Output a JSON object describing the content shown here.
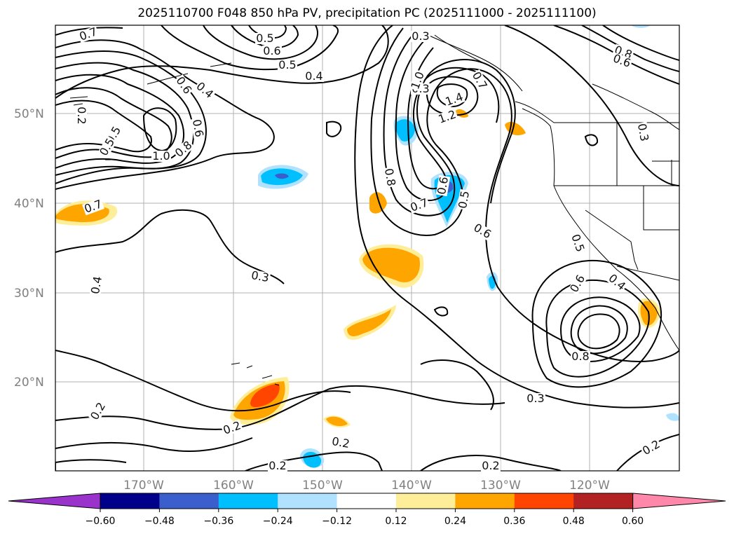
{
  "title": "2025110700 F048 850 hPa PV, precipitation PC (2025111000 - 2025111100)",
  "map": {
    "lat_labels": [
      "50°N",
      "40°N",
      "30°N",
      "20°N"
    ],
    "lon_labels": [
      "170°W",
      "160°W",
      "150°W",
      "140°W",
      "130°W",
      "120°W"
    ],
    "contour_labels": [
      "0.7",
      "0.5",
      "0.6",
      "0.5",
      "0.4",
      "0.3",
      "0.2",
      "0.3",
      "0.6",
      "0.5",
      "0.6",
      "0.4",
      "0.7",
      "1.0",
      "0.8",
      "0.5",
      "0.4",
      "0.3",
      "0.2",
      "0.2",
      "0.2",
      "0.2",
      "1.0",
      "1.4",
      "1.2",
      "0.7",
      "0.8",
      "0.7",
      "0.6",
      "0.5",
      "0.6",
      "0.8",
      "0.6",
      "0.3",
      "0.5",
      "0.6",
      "0.4",
      "0.8",
      "0.3",
      "0.2",
      "0.2"
    ]
  },
  "colorbar": {
    "ticks": [
      "−0.60",
      "−0.48",
      "−0.36",
      "−0.24",
      "−0.12",
      "0.12",
      "0.24",
      "0.36",
      "0.48",
      "0.60"
    ],
    "colors": [
      "#9933cc",
      "#00008b",
      "#3a5fcd",
      "#00bfff",
      "#b0e2ff",
      "#ffffff",
      "#ffee99",
      "#ffa500",
      "#ff4500",
      "#b22222",
      "#ff88aa"
    ]
  }
}
